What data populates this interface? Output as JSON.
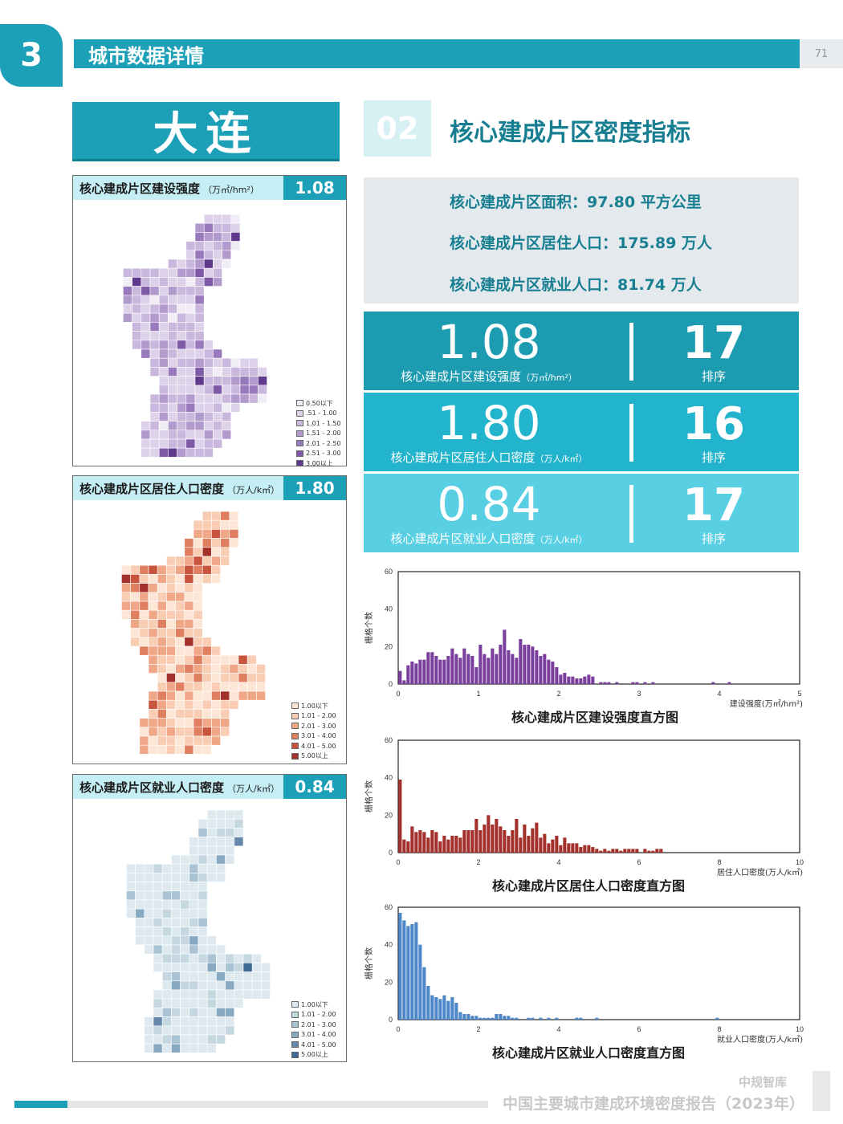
{
  "header": {
    "chapter": "3",
    "section": "城市数据详情",
    "page": "71"
  },
  "city": "大连",
  "section": {
    "number": "02",
    "title": "核心建成片区密度指标"
  },
  "stats": [
    "核心建成片区面积：97.80 平方公里",
    "核心建成片区居住人口：175.89 万人",
    "核心建成片区就业人口：81.74 万人"
  ],
  "indicators": [
    {
      "value": "1.08",
      "label": "核心建成片区建设强度",
      "unit": "（万㎡/hm²）",
      "rank": "17",
      "rank_label": "排序",
      "color": "#1c9bb1"
    },
    {
      "value": "1.80",
      "label": "核心建成片区居住人口密度",
      "unit": "（万人/k㎡）",
      "rank": "16",
      "rank_label": "排序",
      "color": "#22b4cd"
    },
    {
      "value": "0.84",
      "label": "核心建成片区就业人口密度",
      "unit": "（万人/k㎡）",
      "rank": "17",
      "rank_label": "排序",
      "color": "#58cfe3"
    }
  ],
  "maps": [
    {
      "title": "核心建成片区建设强度",
      "unit": "（万㎡/hm²）",
      "value": "1.08",
      "legend": [
        "0.50以下",
        ".51 - 1.00",
        "1.01 - 1.50",
        "1.51 - 2.00",
        "2.01 - 2.50",
        "2.51 - 3.00",
        "3.00以上"
      ],
      "colors": [
        "#f1edf6",
        "#ddd2ea",
        "#c9b7dd",
        "#b29acd",
        "#9879bb",
        "#7d59a6",
        "#5f3a8c"
      ]
    },
    {
      "title": "核心建成片区居住人口密度",
      "unit": "（万人/k㎡）",
      "value": "1.80",
      "legend": [
        "1.00以下",
        "1.01 - 2.00",
        "2.01 - 3.00",
        "3.01 - 4.00",
        "4.01 - 5.00",
        "5.00以上"
      ],
      "colors": [
        "#fde6d6",
        "#f8cdb4",
        "#f0a788",
        "#e07f60",
        "#c9543e",
        "#a3302a"
      ]
    },
    {
      "title": "核心建成片区就业人口密度",
      "unit": "（万人/k㎡）",
      "value": "0.84",
      "legend": [
        "1.00以下",
        "1.01 - 2.00",
        "2.01 - 3.00",
        "3.01 - 4.00",
        "4.01 - 5.00",
        "5.00以上"
      ],
      "colors": [
        "#dde9ee",
        "#c5d8e2",
        "#a9c3d4",
        "#88a9c2",
        "#6689ab",
        "#3f6a93"
      ]
    }
  ],
  "chart_data": [
    {
      "type": "bar",
      "title": "核心建成片区建设强度直方图",
      "xlabel": "建设强度(万㎡/hm²)",
      "ylabel": "栅格个数",
      "xlim": [
        0,
        5
      ],
      "ylim": [
        0,
        60
      ],
      "xticks": [
        0,
        1,
        2,
        3,
        4,
        5
      ],
      "yticks": [
        0,
        20,
        40,
        60
      ],
      "color": "#7a3f9d",
      "bin_width": 0.05,
      "values": [
        7,
        2,
        10,
        12,
        11,
        13,
        13,
        17,
        17,
        15,
        13,
        13,
        15,
        19,
        16,
        14,
        19,
        16,
        15,
        9,
        21,
        16,
        14,
        19,
        16,
        21,
        29,
        18,
        16,
        14,
        24,
        21,
        21,
        20,
        18,
        15,
        16,
        13,
        12,
        9,
        5,
        6,
        4,
        4,
        3,
        3,
        4,
        5,
        4,
        0,
        1,
        1,
        1,
        0,
        1,
        0,
        0,
        0,
        1,
        1,
        0,
        1,
        0,
        1,
        0,
        0,
        0,
        0,
        0,
        0,
        0,
        0,
        0,
        0,
        0,
        0,
        0,
        0,
        1,
        0,
        0,
        0,
        1,
        0,
        0,
        0,
        0,
        0,
        0,
        0,
        0,
        0,
        0,
        0,
        0,
        0,
        0,
        0,
        0,
        0
      ]
    },
    {
      "type": "bar",
      "title": "核心建成片区居住人口密度直方图",
      "xlabel": "居住人口密度(万人/k㎡)",
      "ylabel": "栅格个数",
      "xlim": [
        0,
        10
      ],
      "ylim": [
        0,
        60
      ],
      "xticks": [
        0,
        2,
        4,
        6,
        8,
        10
      ],
      "yticks": [
        0,
        20,
        40,
        60
      ],
      "color": "#a3302a",
      "bin_width": 0.1,
      "values": [
        39,
        7,
        6,
        14,
        11,
        12,
        11,
        8,
        12,
        11,
        6,
        9,
        7,
        9,
        9,
        8,
        12,
        12,
        12,
        18,
        12,
        15,
        20,
        15,
        18,
        14,
        12,
        9,
        12,
        18,
        8,
        15,
        9,
        13,
        16,
        8,
        10,
        5,
        7,
        9,
        4,
        8,
        5,
        5,
        5,
        3,
        4,
        4,
        3,
        2,
        1,
        2,
        1,
        2,
        2,
        1,
        2,
        2,
        2,
        2,
        0,
        2,
        1,
        1,
        2,
        2,
        0,
        0,
        0,
        0,
        0,
        0,
        0,
        0,
        0,
        0,
        0,
        0,
        0,
        0,
        0,
        0,
        0,
        0,
        0,
        0,
        0,
        0,
        0,
        0,
        0,
        0,
        0,
        0,
        0,
        0,
        0,
        0,
        0,
        0
      ]
    },
    {
      "type": "bar",
      "title": "核心建成片区就业人口密度直方图",
      "xlabel": "就业人口密度(万人/k㎡)",
      "ylabel": "栅格个数",
      "xlim": [
        0,
        10
      ],
      "ylim": [
        0,
        60
      ],
      "xticks": [
        0,
        2,
        4,
        6,
        8,
        10
      ],
      "yticks": [
        0,
        20,
        40,
        60
      ],
      "color": "#4d86c9",
      "bin_width": 0.1,
      "values": [
        57,
        53,
        50,
        51,
        52,
        40,
        28,
        18,
        13,
        12,
        11,
        13,
        10,
        12,
        9,
        4,
        3,
        3,
        2,
        2,
        1,
        1,
        1,
        1,
        3,
        3,
        2,
        2,
        1,
        1,
        0,
        0,
        1,
        1,
        0,
        1,
        0,
        1,
        0,
        1,
        0,
        0,
        0,
        0,
        1,
        1,
        0,
        0,
        0,
        1,
        0,
        0,
        0,
        0,
        0,
        0,
        0,
        0,
        0,
        0,
        0,
        0,
        0,
        0,
        0,
        0,
        0,
        0,
        0,
        0,
        0,
        0,
        0,
        0,
        0,
        0,
        0,
        0,
        0,
        1,
        0,
        0,
        0,
        0,
        0,
        0,
        0,
        0,
        0,
        0,
        0,
        0,
        0,
        0,
        0,
        0,
        0,
        0,
        0,
        0
      ]
    }
  ],
  "footer": {
    "brand": "中规智库",
    "title": "中国主要城市建成环境密度报告（2023年）"
  }
}
